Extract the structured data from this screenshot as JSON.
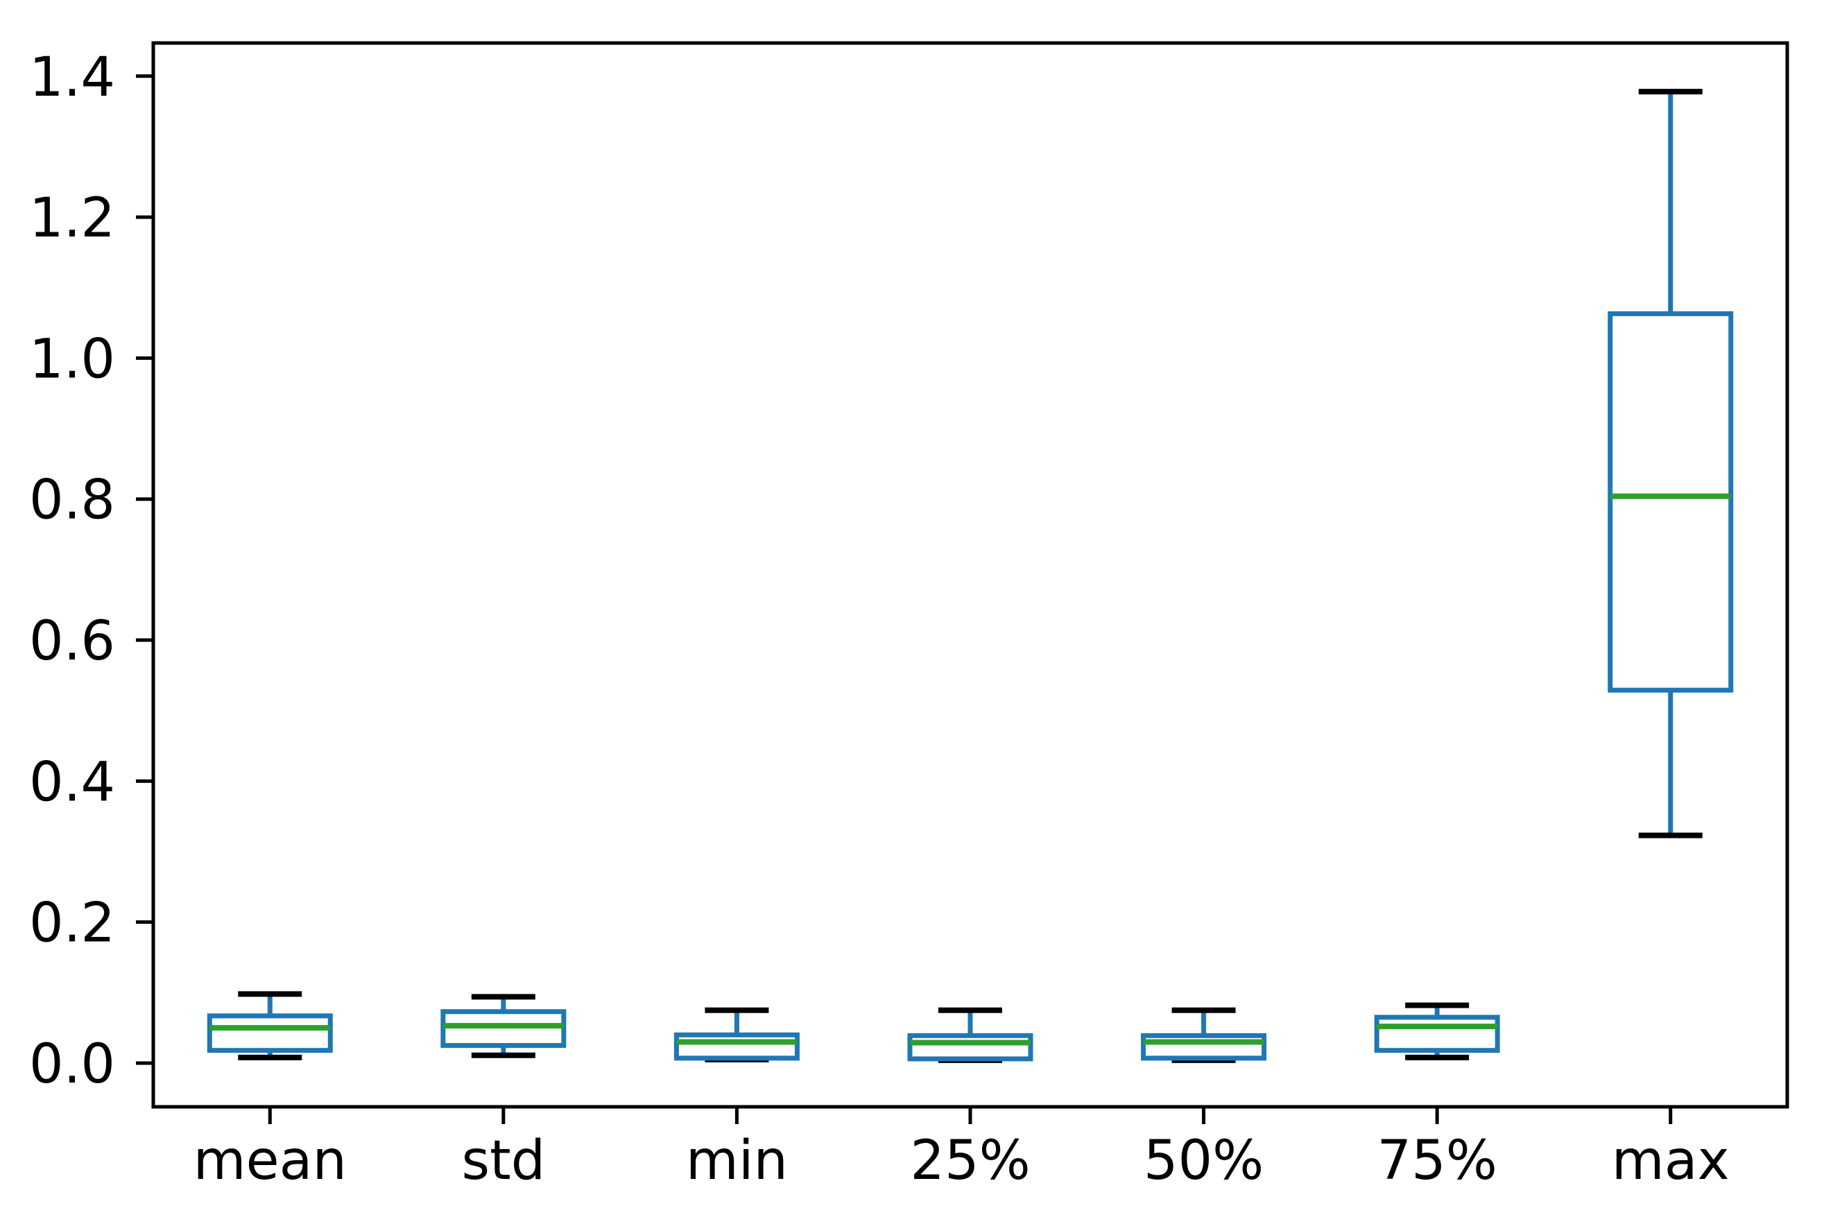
{
  "figure": {
    "background": "#ffffff"
  },
  "chart_data": {
    "type": "box",
    "categories": [
      "mean",
      "std",
      "min",
      "25%",
      "50%",
      "75%",
      "max"
    ],
    "series": [
      {
        "name": "mean",
        "whisker_low": 0.008,
        "q1": 0.018,
        "median": 0.05,
        "q3": 0.067,
        "whisker_high": 0.098
      },
      {
        "name": "std",
        "whisker_low": 0.011,
        "q1": 0.025,
        "median": 0.053,
        "q3": 0.073,
        "whisker_high": 0.094
      },
      {
        "name": "min",
        "whisker_low": 0.005,
        "q1": 0.007,
        "median": 0.03,
        "q3": 0.04,
        "whisker_high": 0.075
      },
      {
        "name": "25%",
        "whisker_low": 0.004,
        "q1": 0.006,
        "median": 0.029,
        "q3": 0.039,
        "whisker_high": 0.075
      },
      {
        "name": "50%",
        "whisker_low": 0.004,
        "q1": 0.007,
        "median": 0.03,
        "q3": 0.039,
        "whisker_high": 0.075
      },
      {
        "name": "75%",
        "whisker_low": 0.008,
        "q1": 0.018,
        "median": 0.052,
        "q3": 0.065,
        "whisker_high": 0.082
      },
      {
        "name": "max",
        "whisker_low": 0.323,
        "q1": 0.529,
        "median": 0.804,
        "q3": 1.063,
        "whisker_high": 1.378
      }
    ],
    "ytick_values": [
      0.0,
      0.2,
      0.4,
      0.6,
      0.8,
      1.0,
      1.2,
      1.4
    ],
    "ytick_labels": [
      "0.0",
      "0.2",
      "0.4",
      "0.6",
      "0.8",
      "1.0",
      "1.2",
      "1.4"
    ],
    "ylim": [
      -0.062,
      1.447
    ],
    "grid": false,
    "legend_position": "none",
    "colors": {
      "box": "#1f77b4",
      "whisker": "#1f77b4",
      "median": "#2ca02c",
      "cap": "#000000",
      "frame": "#000000",
      "text": "#000000"
    }
  }
}
